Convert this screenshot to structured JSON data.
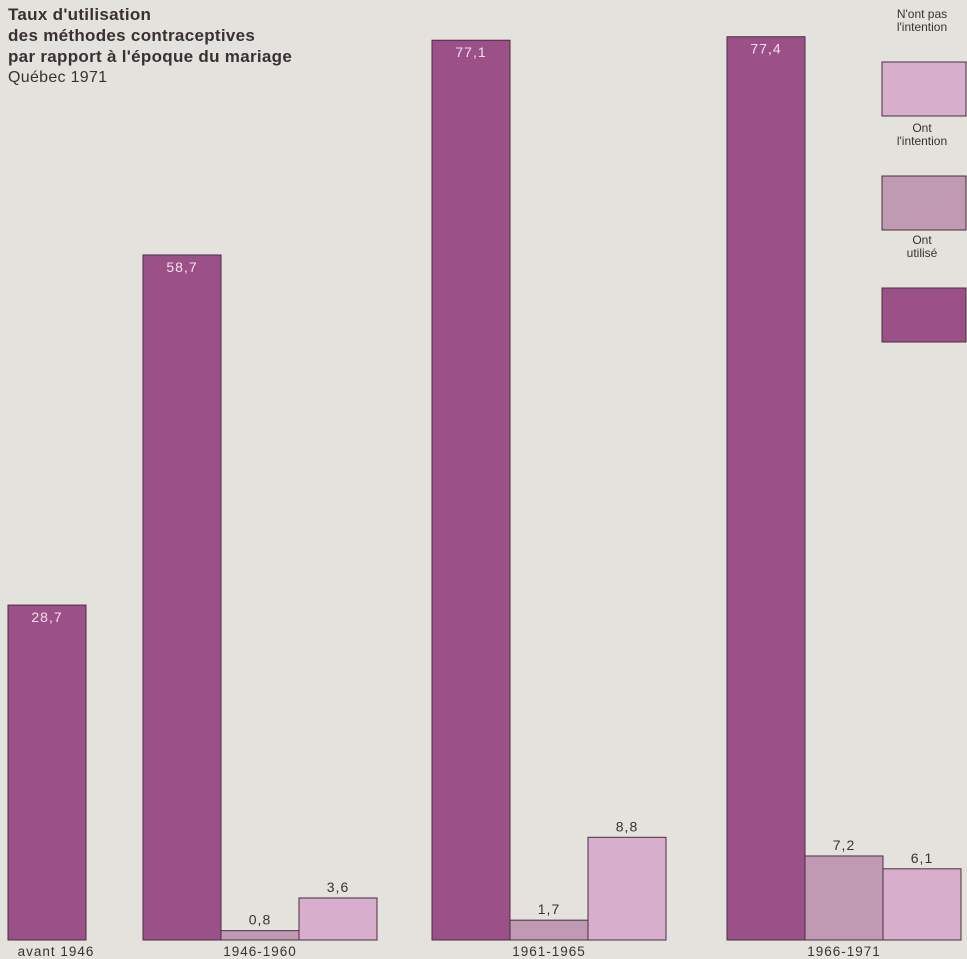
{
  "chart_data": {
    "type": "bar",
    "title_lines": [
      "Taux d'utilisation",
      "des méthodes contraceptives",
      "par rapport à l'époque du mariage"
    ],
    "subtitle": "Québec 1971",
    "categories": [
      "avant 1946",
      "1946-1960",
      "1961-1965",
      "1966-1971"
    ],
    "series": [
      {
        "name": "Ont utilisé",
        "values": [
          28.7,
          58.7,
          77.1,
          77.4
        ],
        "labels": [
          "28,7",
          "58,7",
          "77,1",
          "77,4"
        ],
        "color": "#9c5088"
      },
      {
        "name": "Ont l'intention",
        "values": [
          null,
          0.8,
          1.7,
          7.2
        ],
        "labels": [
          "",
          "0,8",
          "1,7",
          "7,2"
        ],
        "color": "#c09ab2"
      },
      {
        "name": "N'ont pas l'intention",
        "values": [
          null,
          3.6,
          8.8,
          6.1
        ],
        "labels": [
          "",
          "3,6",
          "8,8",
          "6,1"
        ],
        "color": "#d7aecb"
      }
    ],
    "legend": {
      "placement": "top-right",
      "items": [
        {
          "lines": [
            "N'ont pas",
            "l'intention"
          ],
          "color": "#d7aecb"
        },
        {
          "lines": [
            "Ont",
            "l'intention"
          ],
          "color": "#c09ab2"
        },
        {
          "lines": [
            "Ont",
            "utilisé"
          ],
          "color": "#9c5088"
        }
      ]
    },
    "ylim": [
      0,
      80
    ],
    "grid": false
  }
}
